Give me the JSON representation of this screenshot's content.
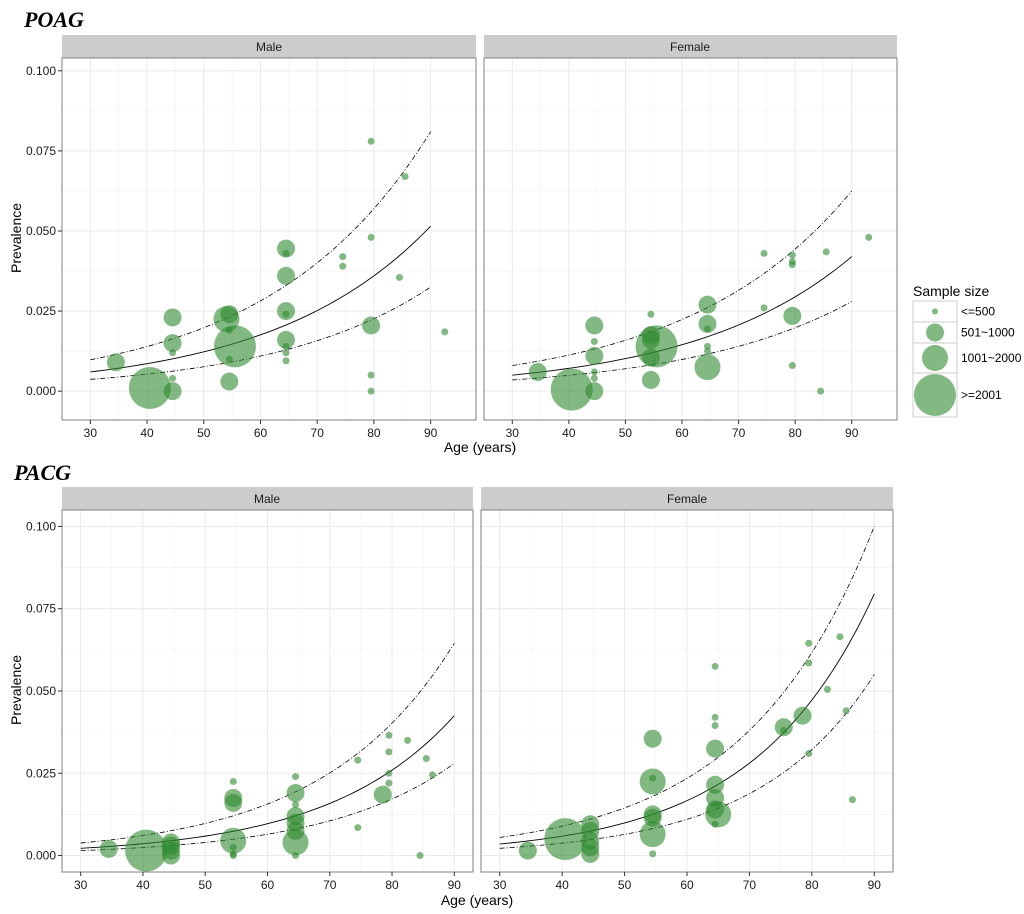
{
  "chart_data": [
    {
      "type": "scatter",
      "title": "POAG",
      "xlabel": "Age (years)",
      "ylabel": "Prevalence",
      "xlim": [
        25,
        98
      ],
      "ylim": [
        -0.009,
        0.104
      ],
      "x_ticks": [
        30,
        40,
        50,
        60,
        70,
        80,
        90
      ],
      "x_tick_labels": [
        "30",
        "40",
        "50",
        "60",
        "70",
        "80",
        "90"
      ],
      "y_ticks": [
        0.0,
        0.025,
        0.05,
        0.075,
        0.1
      ],
      "y_tick_labels": [
        "0.000",
        "0.025",
        "0.050",
        "0.075",
        "0.100"
      ],
      "point_color": "#2e8b2e",
      "facets": [
        {
          "label": "Male",
          "fit": {
            "x": [
              30,
              90
            ],
            "mid": [
              0.006,
              0.0515
            ],
            "upper": [
              0.0098,
              0.081
            ],
            "lower": [
              0.0037,
              0.0325
            ]
          },
          "points": [
            {
              "x": 34.5,
              "y": 0.009,
              "size": 2
            },
            {
              "x": 40.5,
              "y": 0.001,
              "size": 4
            },
            {
              "x": 44.5,
              "y": 0.023,
              "size": 2
            },
            {
              "x": 44.5,
              "y": 0.015,
              "size": 2
            },
            {
              "x": 44.5,
              "y": 0.012,
              "size": 1
            },
            {
              "x": 44.5,
              "y": 0.004,
              "size": 1
            },
            {
              "x": 44.5,
              "y": 0.0,
              "size": 2
            },
            {
              "x": 54.0,
              "y": 0.0225,
              "size": 3
            },
            {
              "x": 54.5,
              "y": 0.024,
              "size": 2
            },
            {
              "x": 54.5,
              "y": 0.019,
              "size": 1
            },
            {
              "x": 55.5,
              "y": 0.014,
              "size": 4
            },
            {
              "x": 54.5,
              "y": 0.01,
              "size": 1
            },
            {
              "x": 54.5,
              "y": 0.003,
              "size": 2
            },
            {
              "x": 64.5,
              "y": 0.0445,
              "size": 2
            },
            {
              "x": 64.5,
              "y": 0.043,
              "size": 1
            },
            {
              "x": 64.5,
              "y": 0.036,
              "size": 2
            },
            {
              "x": 64.5,
              "y": 0.025,
              "size": 2
            },
            {
              "x": 64.5,
              "y": 0.024,
              "size": 1
            },
            {
              "x": 64.5,
              "y": 0.016,
              "size": 2
            },
            {
              "x": 64.5,
              "y": 0.014,
              "size": 1
            },
            {
              "x": 64.5,
              "y": 0.012,
              "size": 1
            },
            {
              "x": 64.5,
              "y": 0.0095,
              "size": 1
            },
            {
              "x": 74.5,
              "y": 0.042,
              "size": 1
            },
            {
              "x": 74.5,
              "y": 0.039,
              "size": 1
            },
            {
              "x": 79.5,
              "y": 0.078,
              "size": 1
            },
            {
              "x": 79.5,
              "y": 0.048,
              "size": 1
            },
            {
              "x": 79.5,
              "y": 0.0205,
              "size": 2
            },
            {
              "x": 79.5,
              "y": 0.005,
              "size": 1
            },
            {
              "x": 79.5,
              "y": 0.0,
              "size": 1
            },
            {
              "x": 84.5,
              "y": 0.0355,
              "size": 1
            },
            {
              "x": 85.5,
              "y": 0.067,
              "size": 1
            },
            {
              "x": 92.5,
              "y": 0.0185,
              "size": 1
            }
          ]
        },
        {
          "label": "Female",
          "fit": {
            "x": [
              30,
              90
            ],
            "mid": [
              0.005,
              0.042
            ],
            "upper": [
              0.008,
              0.0625
            ],
            "lower": [
              0.0035,
              0.028
            ]
          },
          "points": [
            {
              "x": 34.5,
              "y": 0.006,
              "size": 2
            },
            {
              "x": 40.5,
              "y": 0.0005,
              "size": 4
            },
            {
              "x": 44.5,
              "y": 0.0205,
              "size": 2
            },
            {
              "x": 44.5,
              "y": 0.0155,
              "size": 1
            },
            {
              "x": 44.5,
              "y": 0.011,
              "size": 2
            },
            {
              "x": 44.5,
              "y": 0.006,
              "size": 1
            },
            {
              "x": 44.5,
              "y": 0.004,
              "size": 1
            },
            {
              "x": 44.5,
              "y": 0.0,
              "size": 2
            },
            {
              "x": 54.5,
              "y": 0.024,
              "size": 1
            },
            {
              "x": 54.5,
              "y": 0.0175,
              "size": 2
            },
            {
              "x": 54.5,
              "y": 0.016,
              "size": 2
            },
            {
              "x": 55.5,
              "y": 0.014,
              "size": 4
            },
            {
              "x": 54.5,
              "y": 0.0105,
              "size": 2
            },
            {
              "x": 54.5,
              "y": 0.0035,
              "size": 2
            },
            {
              "x": 64.5,
              "y": 0.027,
              "size": 2
            },
            {
              "x": 64.5,
              "y": 0.021,
              "size": 2
            },
            {
              "x": 64.5,
              "y": 0.0195,
              "size": 1
            },
            {
              "x": 64.5,
              "y": 0.014,
              "size": 1
            },
            {
              "x": 64.5,
              "y": 0.0125,
              "size": 1
            },
            {
              "x": 64.5,
              "y": 0.0075,
              "size": 3
            },
            {
              "x": 74.5,
              "y": 0.043,
              "size": 1
            },
            {
              "x": 74.5,
              "y": 0.026,
              "size": 1
            },
            {
              "x": 79.5,
              "y": 0.0425,
              "size": 1
            },
            {
              "x": 79.5,
              "y": 0.0405,
              "size": 1
            },
            {
              "x": 79.5,
              "y": 0.0395,
              "size": 1
            },
            {
              "x": 79.5,
              "y": 0.0235,
              "size": 2
            },
            {
              "x": 79.5,
              "y": 0.008,
              "size": 1
            },
            {
              "x": 84.5,
              "y": 0.0,
              "size": 1
            },
            {
              "x": 85.5,
              "y": 0.0435,
              "size": 1
            },
            {
              "x": 93.0,
              "y": 0.048,
              "size": 1
            }
          ]
        }
      ]
    },
    {
      "type": "scatter",
      "title": "PACG",
      "xlabel": "Age (years)",
      "ylabel": "Prevalence",
      "xlim": [
        27,
        93
      ],
      "ylim": [
        -0.005,
        0.105
      ],
      "x_ticks": [
        30,
        40,
        50,
        60,
        70,
        80,
        90
      ],
      "x_tick_labels": [
        "30",
        "40",
        "50",
        "60",
        "70",
        "80",
        "90"
      ],
      "y_ticks": [
        0.0,
        0.025,
        0.05,
        0.075,
        0.1
      ],
      "y_tick_labels": [
        "0.000",
        "0.025",
        "0.050",
        "0.075",
        "0.100"
      ],
      "point_color": "#2e8b2e",
      "facets": [
        {
          "label": "Male",
          "fit": {
            "x": [
              30,
              90
            ],
            "mid": [
              0.0022,
              0.0425
            ],
            "upper": [
              0.0038,
              0.0645
            ],
            "lower": [
              0.0015,
              0.028
            ]
          },
          "points": [
            {
              "x": 34.5,
              "y": 0.002,
              "size": 2
            },
            {
              "x": 40.5,
              "y": 0.0015,
              "size": 4
            },
            {
              "x": 44.5,
              "y": 0.004,
              "size": 2
            },
            {
              "x": 44.5,
              "y": 0.003,
              "size": 2
            },
            {
              "x": 44.5,
              "y": 0.0015,
              "size": 2
            },
            {
              "x": 44.5,
              "y": 0.0,
              "size": 2
            },
            {
              "x": 54.5,
              "y": 0.0225,
              "size": 1
            },
            {
              "x": 54.5,
              "y": 0.0175,
              "size": 2
            },
            {
              "x": 54.5,
              "y": 0.016,
              "size": 2
            },
            {
              "x": 54.5,
              "y": 0.0045,
              "size": 3
            },
            {
              "x": 54.5,
              "y": 0.0025,
              "size": 1
            },
            {
              "x": 54.5,
              "y": 0.0005,
              "size": 1
            },
            {
              "x": 54.5,
              "y": 0.0,
              "size": 1
            },
            {
              "x": 64.5,
              "y": 0.024,
              "size": 1
            },
            {
              "x": 64.5,
              "y": 0.019,
              "size": 2
            },
            {
              "x": 64.5,
              "y": 0.0155,
              "size": 1
            },
            {
              "x": 64.5,
              "y": 0.012,
              "size": 2
            },
            {
              "x": 64.5,
              "y": 0.01,
              "size": 2
            },
            {
              "x": 64.5,
              "y": 0.0075,
              "size": 2
            },
            {
              "x": 64.5,
              "y": 0.004,
              "size": 3
            },
            {
              "x": 64.5,
              "y": 0.0,
              "size": 1
            },
            {
              "x": 74.5,
              "y": 0.029,
              "size": 1
            },
            {
              "x": 74.5,
              "y": 0.0085,
              "size": 1
            },
            {
              "x": 78.5,
              "y": 0.0185,
              "size": 2
            },
            {
              "x": 79.5,
              "y": 0.0365,
              "size": 1
            },
            {
              "x": 79.5,
              "y": 0.0315,
              "size": 1
            },
            {
              "x": 79.5,
              "y": 0.025,
              "size": 1
            },
            {
              "x": 79.5,
              "y": 0.022,
              "size": 1
            },
            {
              "x": 82.5,
              "y": 0.035,
              "size": 1
            },
            {
              "x": 84.5,
              "y": 0.0,
              "size": 1
            },
            {
              "x": 85.5,
              "y": 0.0295,
              "size": 1
            },
            {
              "x": 86.5,
              "y": 0.0245,
              "size": 1
            }
          ]
        },
        {
          "label": "Female",
          "fit": {
            "x": [
              30,
              90
            ],
            "mid": [
              0.0035,
              0.0795
            ],
            "upper": [
              0.0055,
              0.1
            ],
            "lower": [
              0.0022,
              0.055
            ]
          },
          "points": [
            {
              "x": 34.5,
              "y": 0.0015,
              "size": 2
            },
            {
              "x": 40.5,
              "y": 0.005,
              "size": 4
            },
            {
              "x": 44.5,
              "y": 0.0095,
              "size": 2
            },
            {
              "x": 44.5,
              "y": 0.0075,
              "size": 2
            },
            {
              "x": 44.5,
              "y": 0.0045,
              "size": 2
            },
            {
              "x": 44.5,
              "y": 0.0025,
              "size": 2
            },
            {
              "x": 44.5,
              "y": 0.0005,
              "size": 2
            },
            {
              "x": 54.5,
              "y": 0.0355,
              "size": 2
            },
            {
              "x": 54.5,
              "y": 0.0235,
              "size": 1
            },
            {
              "x": 54.5,
              "y": 0.0225,
              "size": 3
            },
            {
              "x": 54.5,
              "y": 0.0125,
              "size": 2
            },
            {
              "x": 54.5,
              "y": 0.0115,
              "size": 2
            },
            {
              "x": 54.5,
              "y": 0.0065,
              "size": 3
            },
            {
              "x": 54.5,
              "y": 0.0005,
              "size": 1
            },
            {
              "x": 64.5,
              "y": 0.0575,
              "size": 1
            },
            {
              "x": 64.5,
              "y": 0.042,
              "size": 1
            },
            {
              "x": 64.5,
              "y": 0.0395,
              "size": 1
            },
            {
              "x": 64.5,
              "y": 0.0325,
              "size": 2
            },
            {
              "x": 64.5,
              "y": 0.0215,
              "size": 2
            },
            {
              "x": 64.5,
              "y": 0.0175,
              "size": 2
            },
            {
              "x": 64.5,
              "y": 0.014,
              "size": 2
            },
            {
              "x": 65.0,
              "y": 0.0125,
              "size": 3
            },
            {
              "x": 64.5,
              "y": 0.0095,
              "size": 1
            },
            {
              "x": 75.5,
              "y": 0.039,
              "size": 2
            },
            {
              "x": 75.5,
              "y": 0.038,
              "size": 1
            },
            {
              "x": 78.5,
              "y": 0.0425,
              "size": 2
            },
            {
              "x": 79.5,
              "y": 0.0645,
              "size": 1
            },
            {
              "x": 79.5,
              "y": 0.0585,
              "size": 1
            },
            {
              "x": 79.5,
              "y": 0.031,
              "size": 1
            },
            {
              "x": 82.5,
              "y": 0.0505,
              "size": 1
            },
            {
              "x": 84.5,
              "y": 0.0665,
              "size": 1
            },
            {
              "x": 85.5,
              "y": 0.044,
              "size": 1
            },
            {
              "x": 86.5,
              "y": 0.017,
              "size": 1
            }
          ]
        }
      ]
    }
  ],
  "legend": {
    "title": "Sample size",
    "placement": "right",
    "items": [
      {
        "label": "<=500",
        "size": 1
      },
      {
        "label": "501~1000",
        "size": 2
      },
      {
        "label": "1001~2000",
        "size": 3
      },
      {
        "label": ">=2001",
        "size": 4
      }
    ]
  }
}
